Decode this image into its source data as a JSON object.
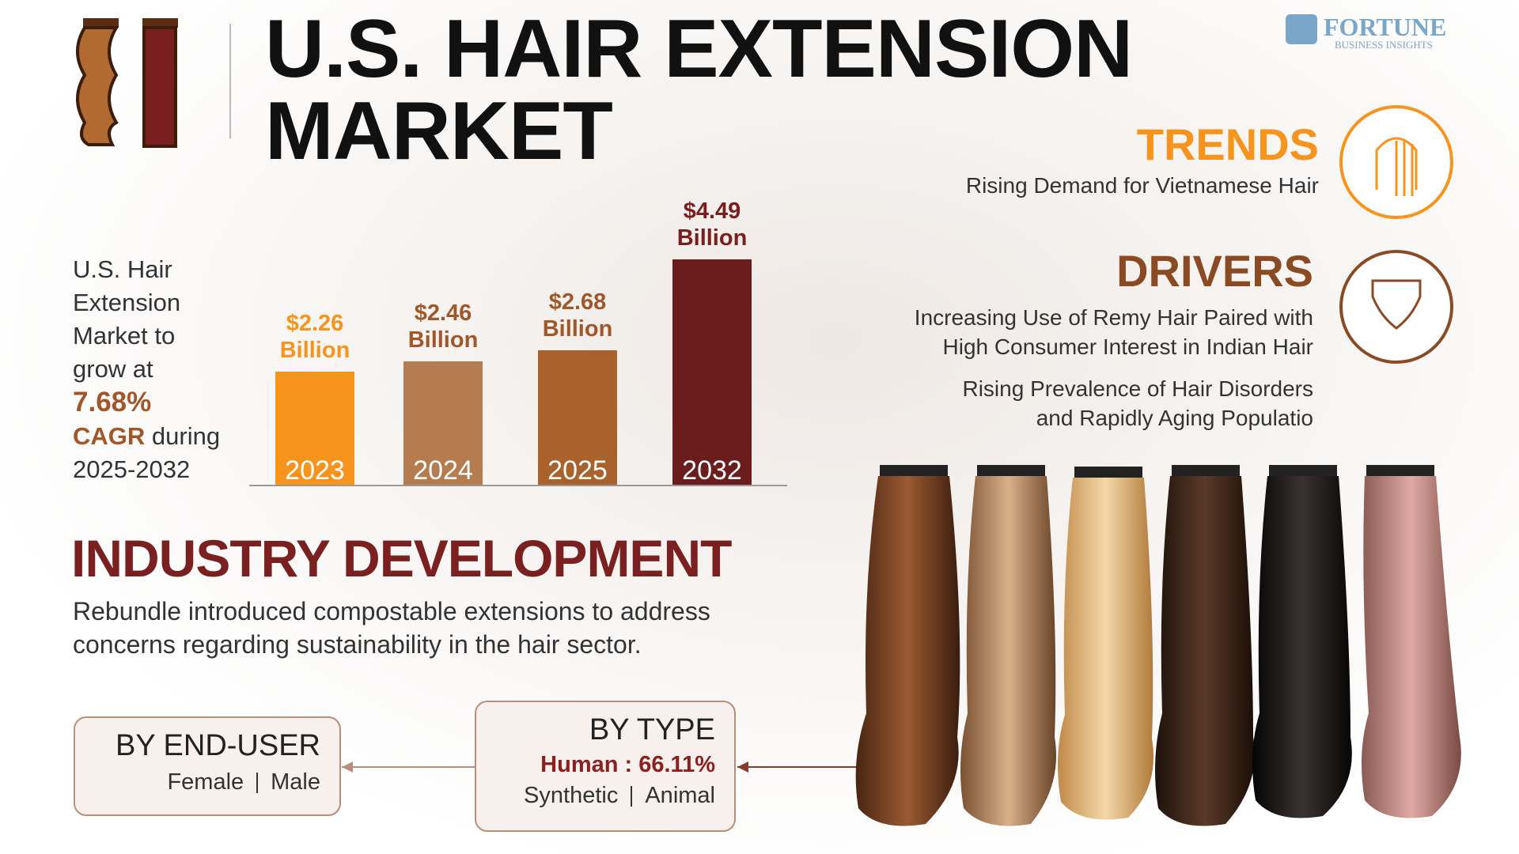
{
  "header": {
    "title": "U.S. HAIR EXTENSION MARKET",
    "logo_name": "FORTUNE",
    "logo_sub": "BUSINESS INSIGHTS"
  },
  "cagr": {
    "lead": "U.S. Hair Extension Market to grow at",
    "rate": "7.68%",
    "label": "CAGR",
    "tail": "during 2025-2032"
  },
  "chart_data": {
    "type": "bar",
    "categories": [
      "2023",
      "2024",
      "2025",
      "2032"
    ],
    "values": [
      2.26,
      2.46,
      2.68,
      4.49
    ],
    "value_labels": [
      "$2.26 Billion",
      "$2.46 Billion",
      "$2.68 Billion",
      "$4.49 Billion"
    ],
    "colors": [
      "#f7941d",
      "#b57c4f",
      "#a9622c",
      "#6b1d1d"
    ],
    "label_colors": [
      "#f7941d",
      "#a0582a",
      "#a0582a",
      "#7a1f1f"
    ]
  },
  "trends": {
    "heading": "TRENDS",
    "text": "Rising Demand for Vietnamese Hair"
  },
  "drivers": {
    "heading": "DRIVERS",
    "items": [
      "Increasing Use of Remy Hair Paired with High Consumer Interest in Indian Hair",
      "Rising Prevalence of Hair Disorders and Rapidly Aging Populatio"
    ]
  },
  "industry": {
    "heading": "INDUSTRY DEVELOPMENT",
    "text": "Rebundle introduced compostable extensions to address concerns regarding sustainability in the hair sector."
  },
  "end_user": {
    "title": "BY END-USER",
    "items": [
      "Female",
      "Male"
    ]
  },
  "by_type": {
    "title": "BY TYPE",
    "highlight": "Human : 66.11%",
    "items": [
      "Synthetic",
      "Animal"
    ]
  }
}
